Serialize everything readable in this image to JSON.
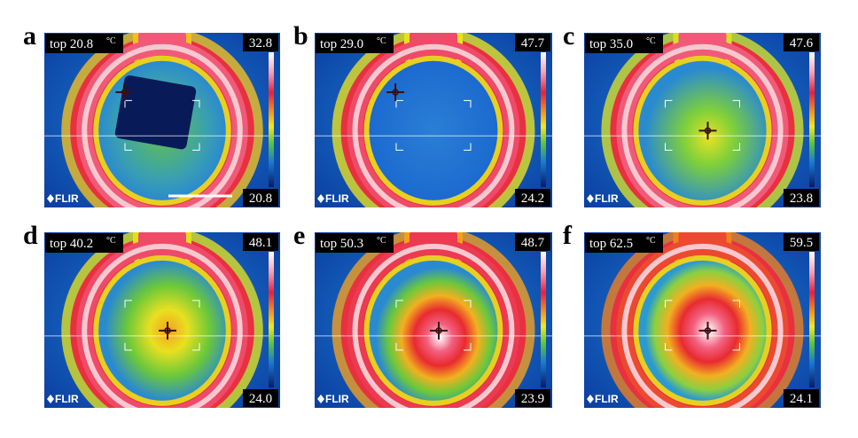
{
  "panels": [
    {
      "letter": "a",
      "top": "top 20.8",
      "unit": "°C",
      "max": "32.8",
      "min": "20.8",
      "logo": "FLIR"
    },
    {
      "letter": "b",
      "top": "top 29.0",
      "unit": "°C",
      "max": "47.7",
      "min": "24.2",
      "logo": "FLIR"
    },
    {
      "letter": "c",
      "top": "top 35.0",
      "unit": "°C",
      "max": "47.6",
      "min": "23.8",
      "logo": "FLIR"
    },
    {
      "letter": "d",
      "top": "top 40.2",
      "unit": "°C",
      "max": "48.1",
      "min": "24.0",
      "logo": "FLIR"
    },
    {
      "letter": "e",
      "top": "top 50.3",
      "unit": "°C",
      "max": "48.7",
      "min": "23.9",
      "logo": "FLIR"
    },
    {
      "letter": "f",
      "top": "top 62.5",
      "unit": "°C",
      "max": "59.5",
      "min": "24.1",
      "logo": "FLIR"
    }
  ]
}
